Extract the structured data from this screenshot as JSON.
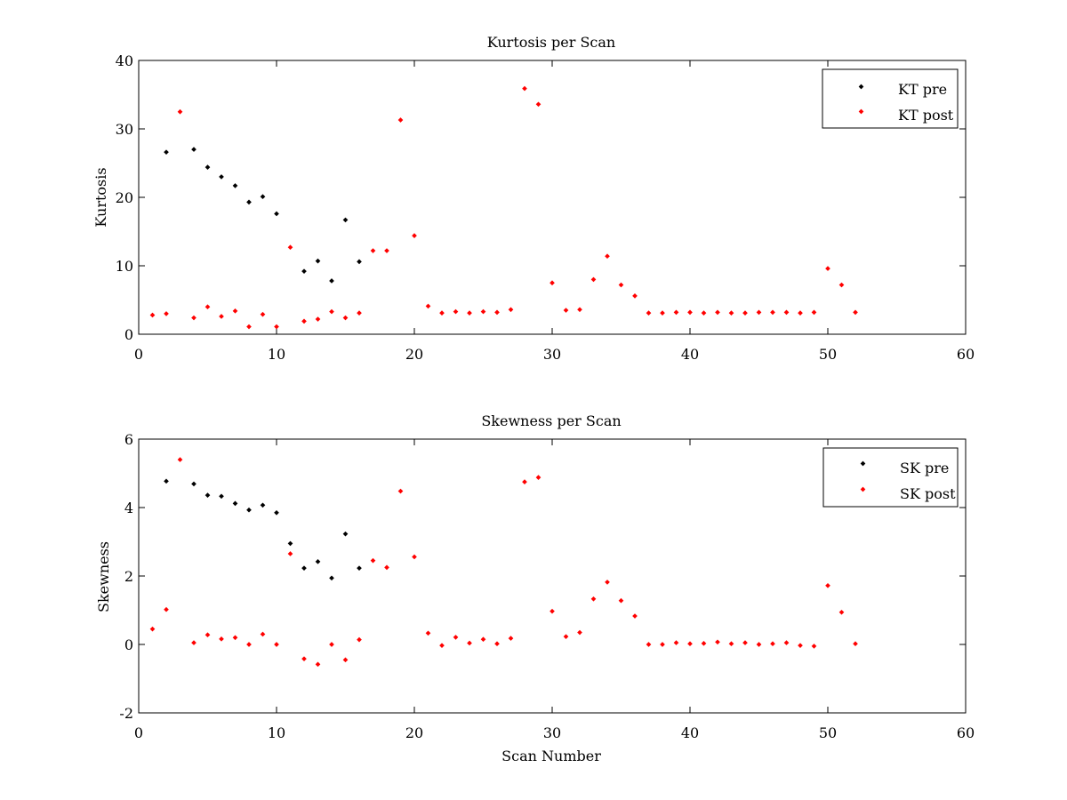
{
  "colors": {
    "pre": "#000000",
    "post": "#ff0000",
    "axis": "#000000",
    "background": "#ffffff"
  },
  "chart_data": [
    {
      "type": "scatter",
      "title": "Kurtosis per Scan",
      "xlabel": "",
      "ylabel": "Kurtosis",
      "xlim": [
        0,
        60
      ],
      "ylim": [
        0,
        40
      ],
      "xticks": [
        0,
        10,
        20,
        30,
        40,
        50,
        60
      ],
      "yticks": [
        0,
        10,
        20,
        30,
        40
      ],
      "grid": false,
      "legend_position": "top-right",
      "series": [
        {
          "name": "KT pre",
          "color": "#000000",
          "points": [
            [
              2,
              26.6
            ],
            [
              4,
              27.0
            ],
            [
              5,
              24.4
            ],
            [
              6,
              23.0
            ],
            [
              7,
              21.7
            ],
            [
              8,
              19.3
            ],
            [
              9,
              20.1
            ],
            [
              10,
              17.6
            ],
            [
              12,
              9.2
            ],
            [
              13,
              10.7
            ],
            [
              14,
              7.8
            ],
            [
              15,
              16.7
            ],
            [
              16,
              10.6
            ]
          ]
        },
        {
          "name": "KT post",
          "color": "#ff0000",
          "points": [
            [
              1,
              2.8
            ],
            [
              2,
              3.0
            ],
            [
              3,
              32.5
            ],
            [
              4,
              2.4
            ],
            [
              5,
              4.0
            ],
            [
              6,
              2.6
            ],
            [
              7,
              3.4
            ],
            [
              8,
              1.1
            ],
            [
              9,
              2.9
            ],
            [
              10,
              1.1
            ],
            [
              11,
              12.7
            ],
            [
              12,
              1.9
            ],
            [
              13,
              2.2
            ],
            [
              14,
              3.3
            ],
            [
              15,
              2.4
            ],
            [
              16,
              3.1
            ],
            [
              17,
              12.2
            ],
            [
              18,
              12.2
            ],
            [
              19,
              31.3
            ],
            [
              20,
              14.4
            ],
            [
              21,
              4.1
            ],
            [
              22,
              3.1
            ],
            [
              23,
              3.3
            ],
            [
              24,
              3.1
            ],
            [
              25,
              3.3
            ],
            [
              26,
              3.2
            ],
            [
              27,
              3.6
            ],
            [
              28,
              35.9
            ],
            [
              29,
              33.6
            ],
            [
              30,
              7.5
            ],
            [
              31,
              3.5
            ],
            [
              32,
              3.6
            ],
            [
              33,
              8.0
            ],
            [
              34,
              11.4
            ],
            [
              35,
              7.2
            ],
            [
              36,
              5.6
            ],
            [
              37,
              3.1
            ],
            [
              38,
              3.1
            ],
            [
              39,
              3.2
            ],
            [
              40,
              3.2
            ],
            [
              41,
              3.1
            ],
            [
              42,
              3.2
            ],
            [
              43,
              3.1
            ],
            [
              44,
              3.1
            ],
            [
              45,
              3.2
            ],
            [
              46,
              3.2
            ],
            [
              47,
              3.2
            ],
            [
              48,
              3.1
            ],
            [
              49,
              3.2
            ],
            [
              50,
              9.6
            ],
            [
              51,
              7.2
            ],
            [
              52,
              3.2
            ]
          ]
        }
      ]
    },
    {
      "type": "scatter",
      "title": "Skewness per Scan",
      "xlabel": "Scan Number",
      "ylabel": "Skewness",
      "xlim": [
        0,
        60
      ],
      "ylim": [
        -2,
        6
      ],
      "xticks": [
        0,
        10,
        20,
        30,
        40,
        50,
        60
      ],
      "yticks": [
        -2,
        0,
        2,
        4,
        6
      ],
      "grid": false,
      "legend_position": "top-right",
      "series": [
        {
          "name": "SK pre",
          "color": "#000000",
          "points": [
            [
              2,
              4.77
            ],
            [
              4,
              4.69
            ],
            [
              5,
              4.36
            ],
            [
              6,
              4.33
            ],
            [
              7,
              4.12
            ],
            [
              8,
              3.93
            ],
            [
              9,
              4.07
            ],
            [
              10,
              3.85
            ],
            [
              11,
              2.95
            ],
            [
              12,
              2.23
            ],
            [
              13,
              2.42
            ],
            [
              14,
              1.94
            ],
            [
              15,
              3.23
            ],
            [
              16,
              2.23
            ]
          ]
        },
        {
          "name": "SK post",
          "color": "#ff0000",
          "points": [
            [
              1,
              0.45
            ],
            [
              2,
              1.02
            ],
            [
              3,
              5.4
            ],
            [
              4,
              0.05
            ],
            [
              5,
              0.28
            ],
            [
              6,
              0.16
            ],
            [
              7,
              0.2
            ],
            [
              8,
              0.0
            ],
            [
              9,
              0.3
            ],
            [
              10,
              0.0
            ],
            [
              11,
              2.65
            ],
            [
              12,
              -0.42
            ],
            [
              13,
              -0.58
            ],
            [
              14,
              0.0
            ],
            [
              15,
              -0.45
            ],
            [
              16,
              0.14
            ],
            [
              17,
              2.45
            ],
            [
              18,
              2.25
            ],
            [
              19,
              4.48
            ],
            [
              20,
              2.56
            ],
            [
              21,
              0.33
            ],
            [
              22,
              -0.03
            ],
            [
              23,
              0.21
            ],
            [
              24,
              0.04
            ],
            [
              25,
              0.15
            ],
            [
              26,
              0.02
            ],
            [
              27,
              0.18
            ],
            [
              28,
              4.75
            ],
            [
              29,
              4.88
            ],
            [
              30,
              0.97
            ],
            [
              31,
              0.23
            ],
            [
              32,
              0.35
            ],
            [
              33,
              1.33
            ],
            [
              34,
              1.82
            ],
            [
              35,
              1.28
            ],
            [
              36,
              0.83
            ],
            [
              37,
              0.0
            ],
            [
              38,
              0.0
            ],
            [
              39,
              0.05
            ],
            [
              40,
              0.02
            ],
            [
              41,
              0.03
            ],
            [
              42,
              0.07
            ],
            [
              43,
              0.02
            ],
            [
              44,
              0.05
            ],
            [
              45,
              0.0
            ],
            [
              46,
              0.02
            ],
            [
              47,
              0.05
            ],
            [
              48,
              -0.03
            ],
            [
              49,
              -0.05
            ],
            [
              50,
              1.72
            ],
            [
              51,
              0.94
            ],
            [
              52,
              0.02
            ]
          ]
        }
      ]
    }
  ]
}
